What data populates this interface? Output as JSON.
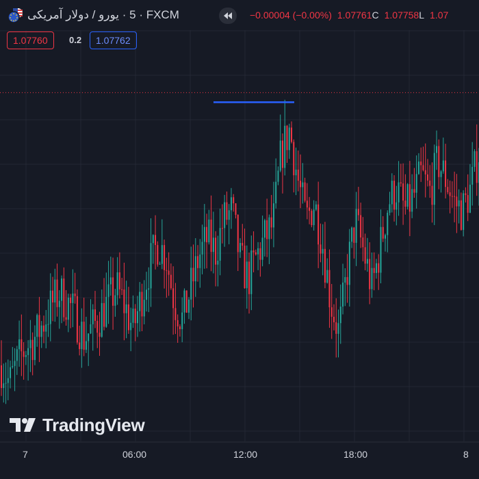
{
  "header": {
    "symbol_name": "یورو / دولار آمریکی",
    "interval": "5",
    "exchange": "FXCM",
    "change": "−0.00004 (−0.00%)",
    "close_value": "1.07761",
    "close_label": "C",
    "low_value": "1.07758",
    "low_label": "L",
    "trailing_value": "1.07"
  },
  "trade": {
    "sell_price": "1.07760",
    "spread": "0.2",
    "buy_price": "1.07762"
  },
  "watermark": {
    "text": "TradingView"
  },
  "colors": {
    "background": "#161a25",
    "grid": "#232733",
    "up": "#26a69a",
    "down": "#f23645",
    "drawing_line": "#2962ff",
    "price_line": "#f23645"
  },
  "icons": [
    "eu-us-flag-icon",
    "rewind-icon",
    "tradingview-logo-icon"
  ],
  "time_axis": {
    "labels": [
      "7",
      "06:00",
      "12:00",
      "18:00",
      "8"
    ]
  },
  "chart_data": {
    "type": "candlestick",
    "symbol": "EURUSD",
    "interval_minutes": 5,
    "ylim": [
      1.07,
      1.0792
    ],
    "current_price": 1.07761,
    "horizontal_line_price": 1.0774,
    "x_tick_labels": [
      "7",
      "06:00",
      "12:00",
      "18:00",
      "8"
    ],
    "approx_close_path": [
      1.0716,
      1.0712,
      1.0717,
      1.072,
      1.0722,
      1.0725,
      1.0729,
      1.0732,
      1.073,
      1.0727,
      1.0722,
      1.0724,
      1.0727,
      1.073,
      1.0733,
      1.0729,
      1.0724,
      1.0731,
      1.0738,
      1.0743,
      1.074,
      1.073,
      1.0726,
      1.0733,
      1.074,
      1.0744,
      1.0741,
      1.0748,
      1.075,
      1.0739,
      1.0735,
      1.074,
      1.0744,
      1.0747,
      1.0763,
      1.0768,
      1.0757,
      1.0748,
      1.0752,
      1.0743,
      1.073,
      1.0723,
      1.0737,
      1.0748,
      1.0741,
      1.0733,
      1.0742,
      1.0752,
      1.0755,
      1.075,
      1.0753,
      1.0758,
      1.0754,
      1.0761,
      1.0757,
      1.0752,
      1.075,
      1.0755,
      1.0763
    ]
  }
}
